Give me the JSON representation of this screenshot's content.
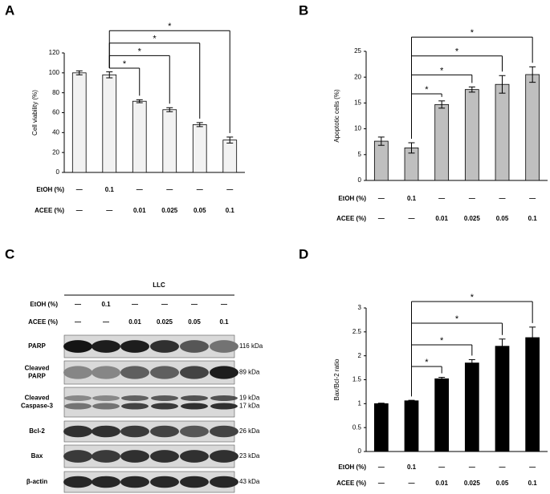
{
  "chart_data": [
    {
      "type": "bar",
      "panel": "A",
      "ylabel": "Cell viability (%)",
      "ylim": [
        0,
        120
      ],
      "yticks": [
        0,
        20,
        40,
        60,
        80,
        100,
        120
      ],
      "values": [
        100,
        98,
        71.5,
        63,
        48,
        32.5
      ],
      "errors": [
        2,
        3,
        1.5,
        2,
        2,
        3
      ],
      "color": "#f2f2f2",
      "rows": [
        {
          "label": "EtOH (%)",
          "values": [
            "—",
            "0.1",
            "—",
            "—",
            "—",
            "—"
          ]
        },
        {
          "label": "ACEE (%)",
          "values": [
            "—",
            "—",
            "0.01",
            "0.025",
            "0.05",
            "0.1"
          ]
        }
      ],
      "comparisons": [
        {
          "from": 1,
          "to": 2,
          "label": "*"
        },
        {
          "from": 1,
          "to": 3,
          "label": "*"
        },
        {
          "from": 1,
          "to": 4,
          "label": "*"
        },
        {
          "from": 1,
          "to": 5,
          "label": "*"
        }
      ]
    },
    {
      "type": "bar",
      "panel": "B",
      "ylabel": "Apoptotic cells (%)",
      "ylim": [
        0,
        25
      ],
      "yticks": [
        0,
        5,
        10,
        15,
        20,
        25
      ],
      "values": [
        7.6,
        6.3,
        14.7,
        17.6,
        18.6,
        20.5
      ],
      "errors": [
        0.8,
        1.0,
        0.7,
        0.5,
        1.7,
        1.5
      ],
      "color": "#bfbfbf",
      "rows": [
        {
          "label": "EtOH (%)",
          "values": [
            "—",
            "0.1",
            "—",
            "—",
            "—",
            "—"
          ]
        },
        {
          "label": "ACEE (%)",
          "values": [
            "—",
            "—",
            "0.01",
            "0.025",
            "0.05",
            "0.1"
          ]
        }
      ],
      "comparisons": [
        {
          "from": 1,
          "to": 2,
          "label": "*"
        },
        {
          "from": 1,
          "to": 3,
          "label": "*"
        },
        {
          "from": 1,
          "to": 4,
          "label": "*"
        },
        {
          "from": 1,
          "to": 5,
          "label": "*"
        }
      ]
    },
    {
      "type": "bar",
      "panel": "D",
      "ylabel": "Bax/Bcl-2 ratio",
      "ylim": [
        0,
        3
      ],
      "yticks": [
        0,
        0.5,
        1,
        1.5,
        2,
        2.5,
        3
      ],
      "values": [
        1.0,
        1.06,
        1.52,
        1.85,
        2.2,
        2.38
      ],
      "errors": [
        0.01,
        0.01,
        0.03,
        0.07,
        0.15,
        0.22
      ],
      "color": "#000000",
      "rows": [
        {
          "label": "EtOH (%)",
          "values": [
            "—",
            "0.1",
            "—",
            "—",
            "—",
            "—"
          ]
        },
        {
          "label": "ACEE (%)",
          "values": [
            "—",
            "—",
            "0.01",
            "0.025",
            "0.05",
            "0.1"
          ]
        }
      ],
      "comparisons": [
        {
          "from": 1,
          "to": 2,
          "label": "*"
        },
        {
          "from": 1,
          "to": 3,
          "label": "*"
        },
        {
          "from": 1,
          "to": 4,
          "label": "*"
        },
        {
          "from": 1,
          "to": 5,
          "label": "*"
        }
      ]
    }
  ],
  "blot": {
    "panel": "C",
    "title": "LLC",
    "rows": [
      {
        "label": "EtOH (%)",
        "values": [
          "—",
          "0.1",
          "—",
          "—",
          "—",
          "—"
        ]
      },
      {
        "label": "ACEE (%)",
        "values": [
          "—",
          "—",
          "0.01",
          "0.025",
          "0.05",
          "0.1"
        ]
      }
    ],
    "bands": [
      {
        "label": [
          "PARP"
        ],
        "size": [
          "116 kDa"
        ]
      },
      {
        "label": [
          "Cleaved",
          "PARP"
        ],
        "size": [
          "89 kDa"
        ]
      },
      {
        "label": [
          "Cleaved",
          "Caspase-3"
        ],
        "size": [
          "19 kDa",
          "17 kDa"
        ]
      },
      {
        "label": [
          "Bcl-2"
        ],
        "size": [
          "26 kDa"
        ]
      },
      {
        "label": [
          "Bax"
        ],
        "size": [
          "23 kDa"
        ]
      },
      {
        "label": [
          "β-actin"
        ],
        "size": [
          "43 kDa"
        ]
      }
    ]
  }
}
